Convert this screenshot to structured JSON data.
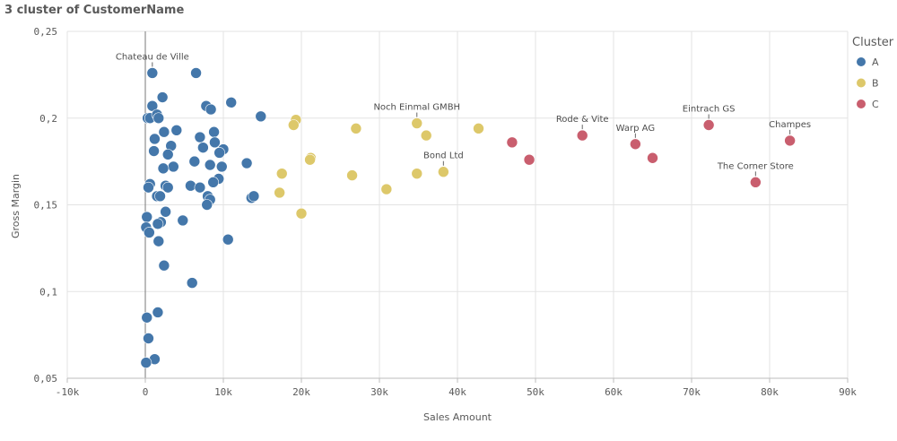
{
  "chart_data": {
    "type": "scatter",
    "title": "3 cluster of CustomerName",
    "xlabel": "Sales Amount",
    "ylabel": "Gross Margin",
    "xlim": [
      -10000,
      90000
    ],
    "ylim": [
      0.05,
      0.25
    ],
    "x_ticks": [
      -10000,
      0,
      10000,
      20000,
      30000,
      40000,
      50000,
      60000,
      70000,
      80000,
      90000
    ],
    "x_tick_labels": [
      "-10k",
      "0",
      "10k",
      "20k",
      "30k",
      "40k",
      "50k",
      "60k",
      "70k",
      "80k",
      "90k"
    ],
    "y_ticks": [
      0.05,
      0.1,
      0.15,
      0.2,
      0.25
    ],
    "y_tick_labels": [
      "0,05",
      "0,1",
      "0,15",
      "0,2",
      "0,25"
    ],
    "grid": true,
    "legend": {
      "title": "Cluster",
      "placement": "right"
    },
    "series": [
      {
        "name": "A",
        "color": "#4477aa",
        "points": [
          [
            900,
            0.226
          ],
          [
            6500,
            0.226
          ],
          [
            2200,
            0.212
          ],
          [
            11000,
            0.209
          ],
          [
            7800,
            0.207
          ],
          [
            8400,
            0.205
          ],
          [
            900,
            0.207
          ],
          [
            300,
            0.2
          ],
          [
            600,
            0.2
          ],
          [
            1500,
            0.202
          ],
          [
            1700,
            0.2
          ],
          [
            14800,
            0.201
          ],
          [
            2400,
            0.192
          ],
          [
            4000,
            0.193
          ],
          [
            8800,
            0.192
          ],
          [
            1200,
            0.188
          ],
          [
            7000,
            0.189
          ],
          [
            8900,
            0.186
          ],
          [
            3300,
            0.184
          ],
          [
            7400,
            0.183
          ],
          [
            10000,
            0.182
          ],
          [
            1100,
            0.181
          ],
          [
            2900,
            0.179
          ],
          [
            9500,
            0.18
          ],
          [
            3600,
            0.172
          ],
          [
            2300,
            0.171
          ],
          [
            6300,
            0.175
          ],
          [
            8300,
            0.173
          ],
          [
            9800,
            0.172
          ],
          [
            13000,
            0.174
          ],
          [
            9400,
            0.165
          ],
          [
            8700,
            0.163
          ],
          [
            600,
            0.162
          ],
          [
            400,
            0.16
          ],
          [
            2600,
            0.161
          ],
          [
            2900,
            0.16
          ],
          [
            5800,
            0.161
          ],
          [
            7000,
            0.16
          ],
          [
            1500,
            0.155
          ],
          [
            1900,
            0.155
          ],
          [
            8000,
            0.155
          ],
          [
            8300,
            0.153
          ],
          [
            7900,
            0.15
          ],
          [
            13600,
            0.154
          ],
          [
            13900,
            0.155
          ],
          [
            200,
            0.143
          ],
          [
            2000,
            0.14
          ],
          [
            1600,
            0.139
          ],
          [
            4800,
            0.141
          ],
          [
            2600,
            0.146
          ],
          [
            100,
            0.137
          ],
          [
            500,
            0.134
          ],
          [
            1700,
            0.129
          ],
          [
            10600,
            0.13
          ],
          [
            2400,
            0.115
          ],
          [
            6000,
            0.105
          ],
          [
            1600,
            0.088
          ],
          [
            200,
            0.085
          ],
          [
            400,
            0.073
          ],
          [
            1200,
            0.061
          ],
          [
            100,
            0.059
          ]
        ]
      },
      {
        "name": "B",
        "color": "#ddc86a",
        "points": [
          [
            19300,
            0.199
          ],
          [
            19000,
            0.196
          ],
          [
            27000,
            0.194
          ],
          [
            34800,
            0.197
          ],
          [
            36000,
            0.19
          ],
          [
            42700,
            0.194
          ],
          [
            21200,
            0.177
          ],
          [
            21100,
            0.176
          ],
          [
            17500,
            0.168
          ],
          [
            26500,
            0.167
          ],
          [
            34800,
            0.168
          ],
          [
            38200,
            0.169
          ],
          [
            17200,
            0.157
          ],
          [
            30900,
            0.159
          ],
          [
            20000,
            0.145
          ]
        ]
      },
      {
        "name": "C",
        "color": "#c95e6e",
        "points": [
          [
            47000,
            0.186
          ],
          [
            49200,
            0.176
          ],
          [
            56000,
            0.19
          ],
          [
            62800,
            0.185
          ],
          [
            65000,
            0.177
          ],
          [
            72200,
            0.196
          ],
          [
            78200,
            0.163
          ],
          [
            82600,
            0.187
          ]
        ]
      }
    ],
    "annotations": [
      {
        "label": "Chateau de Ville",
        "x": 900,
        "y": 0.226
      },
      {
        "label": "Noch Einmal GMBH",
        "x": 34800,
        "y": 0.197
      },
      {
        "label": "Bond Ltd",
        "x": 38200,
        "y": 0.169
      },
      {
        "label": "Rode & Vite",
        "x": 56000,
        "y": 0.19
      },
      {
        "label": "Warp AG",
        "x": 62800,
        "y": 0.185
      },
      {
        "label": "Eintrach GS",
        "x": 72200,
        "y": 0.196
      },
      {
        "label": "Champes",
        "x": 82600,
        "y": 0.187
      },
      {
        "label": "The Corner Store",
        "x": 78200,
        "y": 0.163
      }
    ]
  }
}
